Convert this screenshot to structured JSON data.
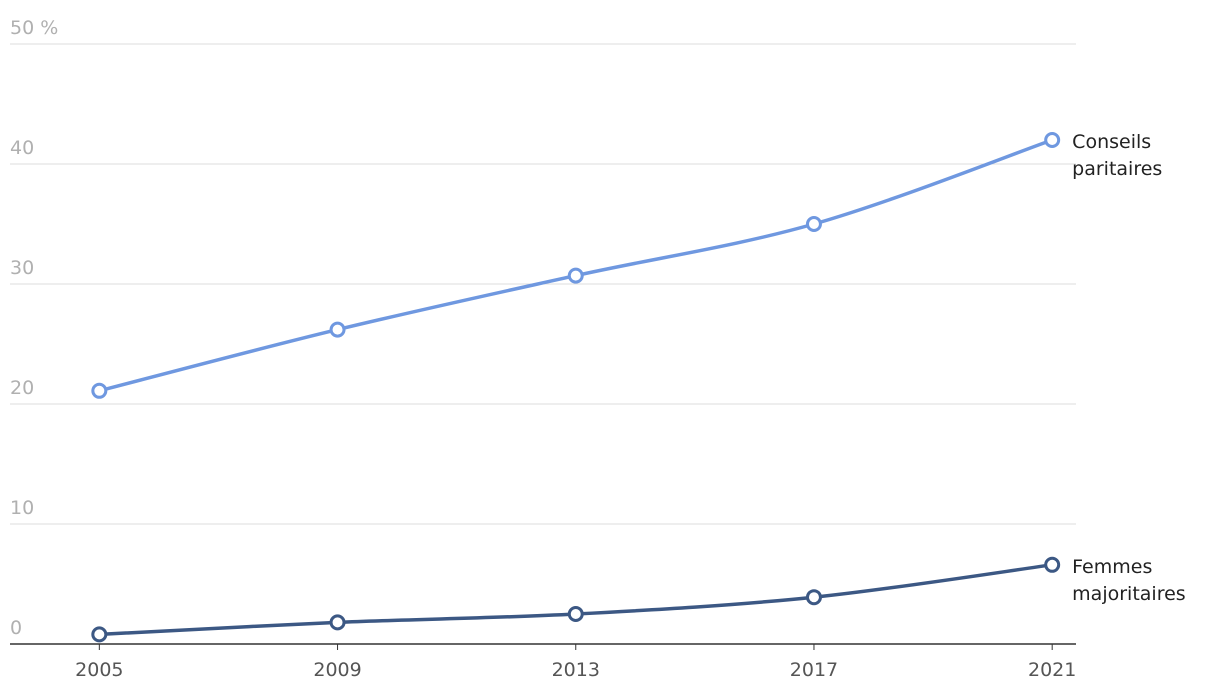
{
  "chart_data": {
    "type": "line",
    "x": [
      2005,
      2009,
      2013,
      2017,
      2021
    ],
    "series": [
      {
        "name": "Conseils paritaires",
        "color": "#6f98e0",
        "values": [
          21.1,
          26.2,
          30.7,
          35,
          42
        ]
      },
      {
        "name": "Femmes majoritaires",
        "color": "#3c5884",
        "values": [
          0.8,
          1.8,
          2.5,
          3.9,
          6.6
        ]
      }
    ],
    "xlim": [
      2003.5,
      2021.4
    ],
    "xticks": [
      2005,
      2009,
      2013,
      2017,
      2021
    ],
    "ylim": [
      0,
      50
    ],
    "yticks": [
      0,
      10,
      20,
      30,
      40,
      {
        "value": 50,
        "label": "50 %"
      }
    ],
    "grid": true
  }
}
